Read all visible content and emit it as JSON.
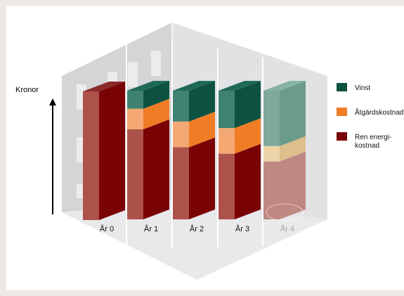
{
  "chart_data": {
    "type": "bar",
    "stacked": true,
    "three_d": true,
    "categories": [
      "År 0",
      "År 1",
      "År 2",
      "År 3",
      "År 4"
    ],
    "category_muted": [
      false,
      false,
      false,
      false,
      true
    ],
    "ylabel": "Kronor",
    "ylim": [
      0,
      100
    ],
    "series": [
      {
        "name": "Ren energi-\nkostnad",
        "key": "energy",
        "values": [
          100,
          70,
          56,
          51,
          45
        ]
      },
      {
        "name": "Åtgärdskostnad",
        "key": "measure",
        "values": [
          0,
          16,
          20,
          20,
          12
        ]
      },
      {
        "name": "Vinst",
        "key": "profit",
        "values": [
          0,
          14,
          24,
          29,
          43
        ]
      }
    ],
    "legend_position": "right",
    "colors": {
      "energy": {
        "front": "#ad524b",
        "side": "#7a0306",
        "top": "#8a2a2a"
      },
      "measure": {
        "front": "#f4a873",
        "side": "#f07d26",
        "top": "#f5a062"
      },
      "profit": {
        "front": "#408271",
        "side": "#0d5240",
        "top": "#1f6a57"
      },
      "energy_muted": {
        "front": "#c08883",
        "side": "#c08883",
        "top": "#c08883"
      },
      "measure_muted": {
        "front": "#ecd3a8",
        "side": "#dcbf8b",
        "top": "#ecd3a8"
      },
      "profit_muted": {
        "front": "#7fa99d",
        "side": "#6a9b8d",
        "top": "#86b3a6"
      },
      "legend_energy": "#7a0306",
      "legend_measure": "#f07d26",
      "legend_profit": "#0d5240"
    }
  }
}
